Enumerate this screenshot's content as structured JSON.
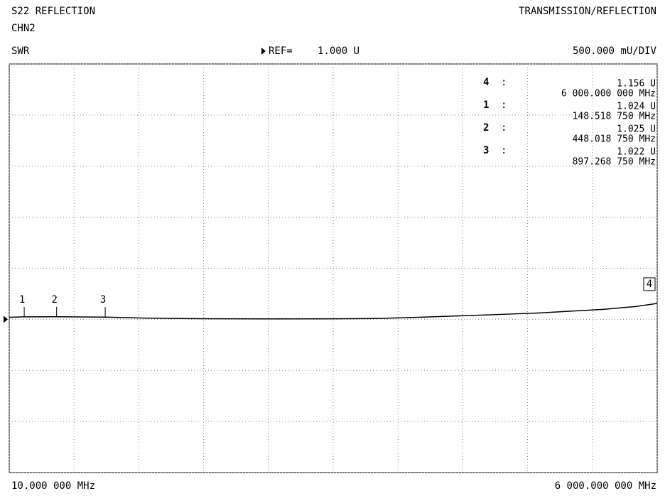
{
  "chart_data": {
    "type": "line",
    "title": "S22 REFLECTION",
    "channel": "CHN2",
    "mode": "TRANSMISSION/REFLECTION",
    "format": "SWR",
    "ref_label": "REF=",
    "ref_value": 1.0,
    "ref_value_label": "1.000 U",
    "scale_label": "500.000 mU/DIV",
    "x_start_label": "10.000 000 MHz",
    "x_stop_label": "6 000.000 000 MHz",
    "xlim": [
      10,
      6000
    ],
    "ylim": [
      -0.5,
      3.5
    ],
    "xticks": [
      10,
      609,
      1208,
      1807,
      2406,
      3005,
      3604,
      4203,
      4802,
      5401,
      6000
    ],
    "yticks": [
      -0.5,
      0,
      0.5,
      1,
      1.5,
      2,
      2.5,
      3,
      3.5
    ],
    "grid": true,
    "color": "#000000",
    "x": [
      10,
      148.51875,
      448.01875,
      897.26875,
      1250,
      1800,
      2400,
      3000,
      3400,
      3800,
      4200,
      4600,
      4900,
      5200,
      5500,
      5800,
      6000
    ],
    "values": [
      1.02,
      1.024,
      1.025,
      1.022,
      1.012,
      1.006,
      1.004,
      1.005,
      1.008,
      1.02,
      1.035,
      1.05,
      1.062,
      1.08,
      1.097,
      1.125,
      1.156
    ],
    "marker_separator": ":",
    "markers": {
      "names": [
        "4",
        "1",
        "2",
        "3"
      ],
      "x": [
        6000,
        148.51875,
        448.01875,
        897.26875
      ],
      "values": [
        1.156,
        1.024,
        1.025,
        1.022
      ],
      "value_labels": [
        "1.156 U",
        "1.024 U",
        "1.025 U",
        "1.022 U"
      ],
      "x_labels": [
        "6 000.000 000 MHz",
        "148.518 750 MHz",
        "448.018 750 MHz",
        "897.268 750 MHz"
      ]
    }
  }
}
